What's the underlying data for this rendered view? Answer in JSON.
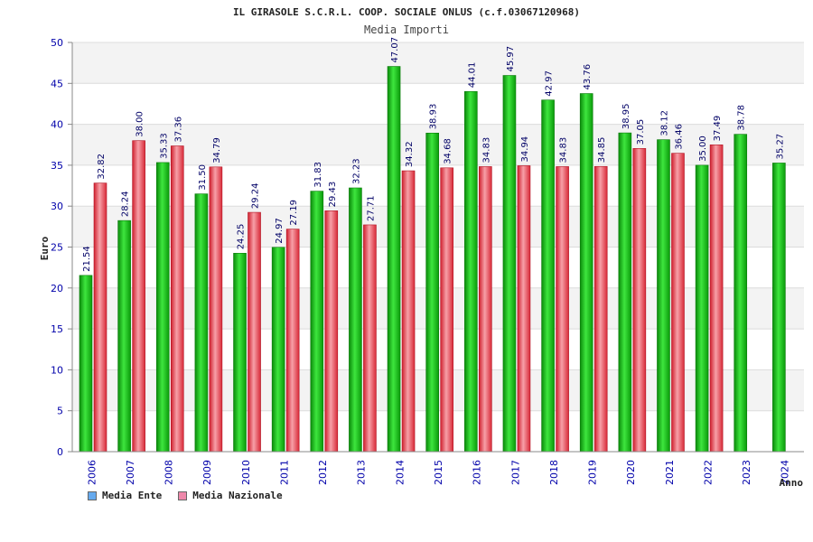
{
  "chart_data": {
    "type": "bar",
    "title": "IL GIRASOLE S.C.R.L. COOP. SOCIALE ONLUS (c.f.03067120968)",
    "subtitle": "Media Importi",
    "ylabel": "Euro",
    "xlabel": "Anno",
    "ylim": [
      0,
      50
    ],
    "yticks": [
      0,
      5,
      10,
      15,
      20,
      25,
      30,
      35,
      40,
      45,
      50
    ],
    "grid": true,
    "legend_position": "bottom-left",
    "categories": [
      "2006",
      "2007",
      "2008",
      "2009",
      "2010",
      "2011",
      "2012",
      "2013",
      "2014",
      "2015",
      "2016",
      "2017",
      "2018",
      "2019",
      "2020",
      "2021",
      "2022",
      "2023",
      "2024"
    ],
    "series": [
      {
        "name": "Media Ente",
        "color": "#22cc22",
        "legend_color": "#66aaee",
        "values": [
          21.54,
          28.24,
          35.33,
          31.5,
          24.25,
          24.97,
          31.83,
          32.23,
          47.07,
          38.93,
          44.01,
          45.97,
          42.97,
          43.76,
          38.95,
          38.12,
          35.0,
          38.78,
          35.27
        ]
      },
      {
        "name": "Media Nazionale",
        "color": "#ee4455",
        "legend_color": "#ee88aa",
        "values": [
          32.82,
          38.0,
          37.36,
          34.79,
          29.24,
          27.19,
          29.43,
          27.71,
          34.32,
          34.68,
          34.83,
          34.94,
          34.83,
          34.85,
          37.05,
          36.46,
          37.49,
          null,
          null
        ]
      }
    ]
  }
}
